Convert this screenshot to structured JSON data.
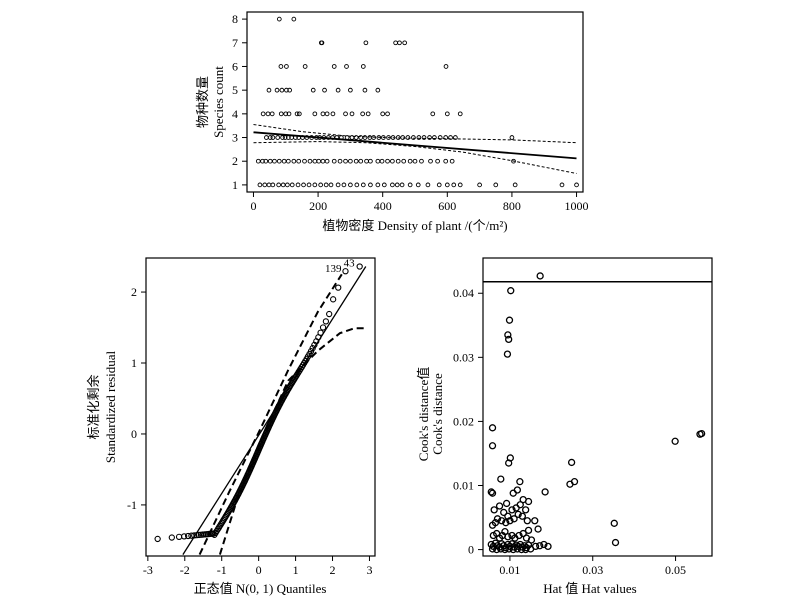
{
  "chart_data": [
    {
      "type": "scatter",
      "panel": "top",
      "xlabel": "植物密度 Density of plant /(个/m²)",
      "ylabel_cn": "物种数量",
      "ylabel_en": "Species count",
      "xlim": [
        -20,
        1020
      ],
      "ylim": [
        0.7,
        8.3
      ],
      "xticks": [
        0,
        200,
        400,
        600,
        800,
        1000
      ],
      "yticks": [
        1,
        2,
        3,
        4,
        5,
        6,
        7,
        8
      ],
      "points": [
        [
          80,
          8
        ],
        [
          125,
          8
        ],
        [
          210,
          7
        ],
        [
          212,
          7
        ],
        [
          348,
          7
        ],
        [
          440,
          7
        ],
        [
          452,
          7
        ],
        [
          468,
          7
        ],
        [
          85,
          6
        ],
        [
          102,
          6
        ],
        [
          160,
          6
        ],
        [
          250,
          6
        ],
        [
          288,
          6
        ],
        [
          340,
          6
        ],
        [
          596,
          6
        ],
        [
          48,
          5
        ],
        [
          73,
          5
        ],
        [
          88,
          5
        ],
        [
          102,
          5
        ],
        [
          112,
          5
        ],
        [
          185,
          5
        ],
        [
          220,
          5
        ],
        [
          262,
          5
        ],
        [
          300,
          5
        ],
        [
          345,
          5
        ],
        [
          385,
          5
        ],
        [
          30,
          4
        ],
        [
          45,
          4
        ],
        [
          58,
          4
        ],
        [
          86,
          4
        ],
        [
          100,
          4
        ],
        [
          110,
          4
        ],
        [
          135,
          4
        ],
        [
          142,
          4
        ],
        [
          190,
          4
        ],
        [
          215,
          4
        ],
        [
          228,
          4
        ],
        [
          246,
          4
        ],
        [
          285,
          4
        ],
        [
          305,
          4
        ],
        [
          338,
          4
        ],
        [
          355,
          4
        ],
        [
          400,
          4
        ],
        [
          415,
          4
        ],
        [
          555,
          4
        ],
        [
          600,
          4
        ],
        [
          640,
          4
        ],
        [
          40,
          3
        ],
        [
          52,
          3
        ],
        [
          60,
          3
        ],
        [
          75,
          3
        ],
        [
          90,
          3
        ],
        [
          98,
          3
        ],
        [
          108,
          3
        ],
        [
          118,
          3
        ],
        [
          130,
          3
        ],
        [
          140,
          3
        ],
        [
          152,
          3
        ],
        [
          165,
          3
        ],
        [
          180,
          3
        ],
        [
          195,
          3
        ],
        [
          205,
          3
        ],
        [
          218,
          3
        ],
        [
          232,
          3
        ],
        [
          245,
          3
        ],
        [
          258,
          3
        ],
        [
          272,
          3
        ],
        [
          290,
          3
        ],
        [
          305,
          3
        ],
        [
          318,
          3
        ],
        [
          332,
          3
        ],
        [
          345,
          3
        ],
        [
          360,
          3
        ],
        [
          372,
          3
        ],
        [
          388,
          3
        ],
        [
          402,
          3
        ],
        [
          418,
          3
        ],
        [
          432,
          3
        ],
        [
          448,
          3
        ],
        [
          462,
          3
        ],
        [
          478,
          3
        ],
        [
          495,
          3
        ],
        [
          512,
          3
        ],
        [
          528,
          3
        ],
        [
          545,
          3
        ],
        [
          560,
          3
        ],
        [
          578,
          3
        ],
        [
          595,
          3
        ],
        [
          610,
          3
        ],
        [
          625,
          3
        ],
        [
          800,
          3
        ],
        [
          15,
          2
        ],
        [
          28,
          2
        ],
        [
          38,
          2
        ],
        [
          52,
          2
        ],
        [
          65,
          2
        ],
        [
          80,
          2
        ],
        [
          95,
          2
        ],
        [
          108,
          2
        ],
        [
          125,
          2
        ],
        [
          140,
          2
        ],
        [
          158,
          2
        ],
        [
          175,
          2
        ],
        [
          190,
          2
        ],
        [
          202,
          2
        ],
        [
          215,
          2
        ],
        [
          228,
          2
        ],
        [
          250,
          2
        ],
        [
          268,
          2
        ],
        [
          285,
          2
        ],
        [
          300,
          2
        ],
        [
          318,
          2
        ],
        [
          332,
          2
        ],
        [
          350,
          2
        ],
        [
          362,
          2
        ],
        [
          385,
          2
        ],
        [
          398,
          2
        ],
        [
          415,
          2
        ],
        [
          430,
          2
        ],
        [
          448,
          2
        ],
        [
          465,
          2
        ],
        [
          485,
          2
        ],
        [
          500,
          2
        ],
        [
          520,
          2
        ],
        [
          548,
          2
        ],
        [
          570,
          2
        ],
        [
          595,
          2
        ],
        [
          615,
          2
        ],
        [
          805,
          2
        ],
        [
          20,
          1
        ],
        [
          35,
          1
        ],
        [
          48,
          1
        ],
        [
          60,
          1
        ],
        [
          78,
          1
        ],
        [
          92,
          1
        ],
        [
          105,
          1
        ],
        [
          120,
          1
        ],
        [
          138,
          1
        ],
        [
          155,
          1
        ],
        [
          172,
          1
        ],
        [
          190,
          1
        ],
        [
          208,
          1
        ],
        [
          225,
          1
        ],
        [
          240,
          1
        ],
        [
          262,
          1
        ],
        [
          280,
          1
        ],
        [
          300,
          1
        ],
        [
          320,
          1
        ],
        [
          340,
          1
        ],
        [
          362,
          1
        ],
        [
          385,
          1
        ],
        [
          405,
          1
        ],
        [
          430,
          1
        ],
        [
          445,
          1
        ],
        [
          460,
          1
        ],
        [
          485,
          1
        ],
        [
          510,
          1
        ],
        [
          540,
          1
        ],
        [
          575,
          1
        ],
        [
          600,
          1
        ],
        [
          620,
          1
        ],
        [
          640,
          1
        ],
        [
          700,
          1
        ],
        [
          750,
          1
        ],
        [
          810,
          1
        ],
        [
          955,
          1
        ],
        [
          1000,
          1
        ]
      ],
      "fit_line": [
        [
          0,
          3.22
        ],
        [
          1000,
          2.12
        ]
      ],
      "ci_upper": [
        [
          0,
          3.55
        ],
        [
          150,
          3.25
        ],
        [
          300,
          3.05
        ],
        [
          450,
          2.98
        ],
        [
          600,
          2.95
        ],
        [
          800,
          2.9
        ],
        [
          1000,
          2.78
        ]
      ],
      "ci_lower": [
        [
          0,
          2.78
        ],
        [
          200,
          2.83
        ],
        [
          350,
          2.78
        ],
        [
          500,
          2.62
        ],
        [
          650,
          2.38
        ],
        [
          800,
          2.02
        ],
        [
          1000,
          1.48
        ]
      ]
    },
    {
      "type": "scatter",
      "panel": "qq",
      "xlabel": "正态值 N(0, 1) Quantiles",
      "ylabel_cn": "标准化剩余",
      "ylabel_en": "Standardized residual",
      "xlim": [
        -3.05,
        3.15
      ],
      "ylim": [
        -1.72,
        2.48
      ],
      "xticks": [
        -3,
        -2,
        -1,
        0,
        1,
        2,
        3
      ],
      "yticks": [
        -1,
        0,
        1,
        2
      ],
      "annotations": [
        {
          "text": "139",
          "x": 2.02,
          "y": 2.28
        },
        {
          "text": "43",
          "x": 2.45,
          "y": 2.36
        }
      ],
      "ref_line": [
        [
          -2.05,
          -1.7
        ],
        [
          2.9,
          2.36
        ]
      ],
      "envelope_upper": [
        [
          -1.6,
          -1.7
        ],
        [
          -0.8,
          -0.82
        ],
        [
          0,
          0.02
        ],
        [
          0.8,
          0.9
        ],
        [
          1.6,
          1.72
        ],
        [
          2.25,
          2.25
        ]
      ],
      "envelope_lower": [
        [
          -1.05,
          -1.7
        ],
        [
          -0.6,
          -0.95
        ],
        [
          0,
          -0.15
        ],
        [
          0.8,
          0.75
        ],
        [
          1.6,
          1.17
        ],
        [
          2.2,
          1.42
        ],
        [
          2.6,
          1.49
        ],
        [
          2.9,
          1.49
        ]
      ]
    },
    {
      "type": "scatter",
      "panel": "cooks",
      "xlabel": "Hat 值 Hat values",
      "ylabel_cn": "Cook's distance值",
      "ylabel_en": "Cook's distance",
      "xlim": [
        0.0035,
        0.0588
      ],
      "ylim": [
        -0.001,
        0.0455
      ],
      "xticks": [
        0.01,
        0.03,
        0.05
      ],
      "yticks": [
        0,
        0.01,
        0.02,
        0.03,
        0.04
      ],
      "threshold": 0.0418,
      "points": [
        [
          0.0173,
          0.0427
        ],
        [
          0.0102,
          0.0404
        ],
        [
          0.0099,
          0.0358
        ],
        [
          0.0095,
          0.0335
        ],
        [
          0.0097,
          0.0328
        ],
        [
          0.0094,
          0.0305
        ],
        [
          0.0058,
          0.019
        ],
        [
          0.0058,
          0.0162
        ],
        [
          0.0101,
          0.0143
        ],
        [
          0.0097,
          0.0135
        ],
        [
          0.0249,
          0.0136
        ],
        [
          0.0256,
          0.0106
        ],
        [
          0.0245,
          0.0102
        ],
        [
          0.0058,
          0.0088
        ],
        [
          0.0055,
          0.009
        ],
        [
          0.0078,
          0.011
        ],
        [
          0.0092,
          0.0072
        ],
        [
          0.0108,
          0.0088
        ],
        [
          0.0118,
          0.0093
        ],
        [
          0.0124,
          0.0106
        ],
        [
          0.0145,
          0.0075
        ],
        [
          0.0185,
          0.009
        ],
        [
          0.0132,
          0.0078
        ],
        [
          0.0062,
          0.0062
        ],
        [
          0.0075,
          0.0068
        ],
        [
          0.0085,
          0.0058
        ],
        [
          0.0095,
          0.0052
        ],
        [
          0.0105,
          0.0062
        ],
        [
          0.0115,
          0.0065
        ],
        [
          0.0125,
          0.007
        ],
        [
          0.0138,
          0.0062
        ],
        [
          0.0058,
          0.0038
        ],
        [
          0.0065,
          0.0042
        ],
        [
          0.007,
          0.0048
        ],
        [
          0.008,
          0.0045
        ],
        [
          0.009,
          0.0042
        ],
        [
          0.01,
          0.0045
        ],
        [
          0.011,
          0.0048
        ],
        [
          0.012,
          0.0055
        ],
        [
          0.013,
          0.0052
        ],
        [
          0.0142,
          0.0045
        ],
        [
          0.016,
          0.0045
        ],
        [
          0.0168,
          0.0032
        ],
        [
          0.0145,
          0.003
        ],
        [
          0.006,
          0.0022
        ],
        [
          0.0068,
          0.0025
        ],
        [
          0.0075,
          0.0018
        ],
        [
          0.0082,
          0.0022
        ],
        [
          0.0088,
          0.0028
        ],
        [
          0.0095,
          0.002
        ],
        [
          0.0105,
          0.0022
        ],
        [
          0.0112,
          0.0018
        ],
        [
          0.0122,
          0.0022
        ],
        [
          0.0132,
          0.0025
        ],
        [
          0.014,
          0.0018
        ],
        [
          0.0152,
          0.0015
        ],
        [
          0.0055,
          0.0008
        ],
        [
          0.006,
          0.0005
        ],
        [
          0.0065,
          0.001
        ],
        [
          0.007,
          0.0006
        ],
        [
          0.0075,
          0.0004
        ],
        [
          0.008,
          0.0009
        ],
        [
          0.0085,
          0.0006
        ],
        [
          0.009,
          0.0003
        ],
        [
          0.0095,
          0.0008
        ],
        [
          0.01,
          0.0005
        ],
        [
          0.0105,
          0.0009
        ],
        [
          0.011,
          0.0004
        ],
        [
          0.0115,
          0.0007
        ],
        [
          0.012,
          0.0005
        ],
        [
          0.0125,
          0.0008
        ],
        [
          0.013,
          0.0004
        ],
        [
          0.0135,
          0.0006
        ],
        [
          0.014,
          0.0003
        ],
        [
          0.0145,
          0.0007
        ],
        [
          0.0162,
          0.0005
        ],
        [
          0.0172,
          0.0006
        ],
        [
          0.0182,
          0.0008
        ],
        [
          0.0192,
          0.0005
        ],
        [
          0.0058,
          0.0001
        ],
        [
          0.0068,
          0.0
        ],
        [
          0.0078,
          0.0001
        ],
        [
          0.0088,
          0.0
        ],
        [
          0.0098,
          0.0001
        ],
        [
          0.0108,
          0.0
        ],
        [
          0.0118,
          0.0001
        ],
        [
          0.0128,
          0.0
        ],
        [
          0.0138,
          0.0
        ],
        [
          0.015,
          0.0001
        ],
        [
          0.0352,
          0.0041
        ],
        [
          0.0355,
          0.0011
        ],
        [
          0.0499,
          0.0169
        ],
        [
          0.0559,
          0.018
        ],
        [
          0.0563,
          0.0181
        ]
      ]
    }
  ]
}
